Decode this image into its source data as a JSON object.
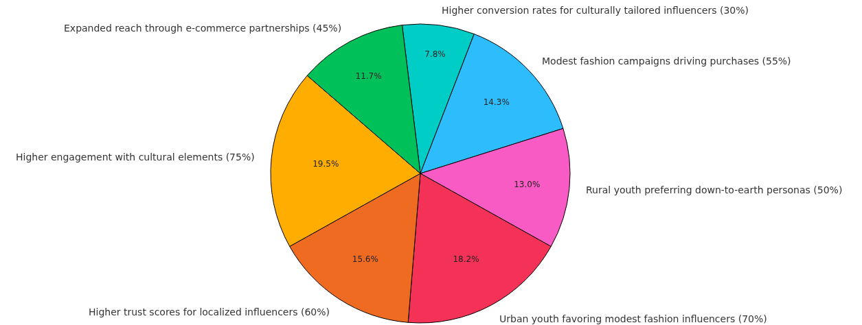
{
  "chart_data": {
    "type": "pie",
    "categories": [
      "Higher conversion rates for culturally tailored influencers (30%)",
      "Modest fashion campaigns driving purchases (55%)",
      "Rural youth preferring down-to-earth personas (50%)",
      "Urban youth favoring modest fashion influencers (70%)",
      "Higher trust scores for localized influencers (60%)",
      "Higher engagement with cultural elements (75%)",
      "Expanded reach through e-commerce partnerships (45%)"
    ],
    "values": [
      7.8,
      14.3,
      13.0,
      18.2,
      15.6,
      19.5,
      11.7
    ],
    "value_labels": [
      "7.8%",
      "14.3%",
      "13.0%",
      "18.2%",
      "15.6%",
      "19.5%",
      "11.7%"
    ],
    "colors": [
      "#00cdc6",
      "#2dbcfc",
      "#f95bc4",
      "#f43157",
      "#f06b22",
      "#ffad00",
      "#00c05a"
    ],
    "legend": false
  }
}
